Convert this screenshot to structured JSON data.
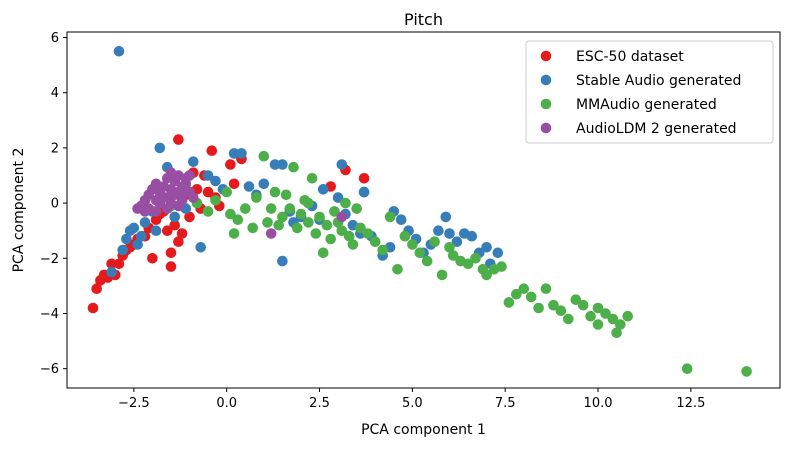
{
  "chart_data": {
    "type": "scatter",
    "title": "Pitch",
    "xlabel": "PCA component 1",
    "ylabel": "PCA component 2",
    "xlim": [
      -4.3,
      14.9
    ],
    "ylim": [
      -6.7,
      6.2
    ],
    "xticks": [
      -2.5,
      0.0,
      2.5,
      5.0,
      7.5,
      10.0,
      12.5
    ],
    "xtick_labels": [
      "−2.5",
      "0.0",
      "2.5",
      "5.0",
      "7.5",
      "10.0",
      "12.5"
    ],
    "yticks": [
      -6,
      -4,
      -2,
      0,
      2,
      4,
      6
    ],
    "ytick_labels": [
      "−6",
      "−4",
      "−2",
      "0",
      "2",
      "4",
      "6"
    ],
    "grid": false,
    "legend_position": "top-right",
    "series": [
      {
        "name": "ESC-50 dataset",
        "color": "#e41a1c",
        "points": [
          [
            -3.6,
            -3.8
          ],
          [
            -3.5,
            -3.1
          ],
          [
            -3.4,
            -2.8
          ],
          [
            -3.3,
            -2.6
          ],
          [
            -3.2,
            -2.7
          ],
          [
            -3.0,
            -2.6
          ],
          [
            -2.9,
            -2.2
          ],
          [
            -2.8,
            -1.9
          ],
          [
            -2.7,
            -1.7
          ],
          [
            -2.5,
            -1.5
          ],
          [
            -2.4,
            -1.3
          ],
          [
            -2.2,
            -1.2
          ],
          [
            -2.1,
            -0.9
          ],
          [
            -2.0,
            -2.0
          ],
          [
            -1.9,
            -0.6
          ],
          [
            -1.8,
            -0.4
          ],
          [
            -1.7,
            -0.3
          ],
          [
            -1.6,
            -1.0
          ],
          [
            -1.5,
            -1.8
          ],
          [
            -1.5,
            -2.3
          ],
          [
            -1.4,
            -0.8
          ],
          [
            -1.3,
            -1.4
          ],
          [
            -1.2,
            -1.1
          ],
          [
            -1.3,
            2.3
          ],
          [
            -1.1,
            0.3
          ],
          [
            -0.9,
            1.1
          ],
          [
            -0.8,
            0.5
          ],
          [
            -0.7,
            -0.2
          ],
          [
            -0.6,
            1.0
          ],
          [
            -0.5,
            0.4
          ],
          [
            -0.4,
            1.9
          ],
          [
            -0.3,
            0.2
          ],
          [
            -0.2,
            -0.1
          ],
          [
            0.1,
            1.4
          ],
          [
            0.2,
            0.7
          ],
          [
            0.4,
            1.6
          ],
          [
            2.8,
            0.6
          ],
          [
            3.2,
            1.2
          ],
          [
            3.7,
            0.9
          ],
          [
            -2.6,
            -1.6
          ],
          [
            -3.1,
            -2.2
          ],
          [
            -1.0,
            -0.5
          ]
        ]
      },
      {
        "name": "Stable Audio generated",
        "color": "#377eb8",
        "points": [
          [
            -2.9,
            5.5
          ],
          [
            -3.1,
            -2.5
          ],
          [
            -2.8,
            -1.7
          ],
          [
            -2.7,
            -1.3
          ],
          [
            -2.6,
            -1.0
          ],
          [
            -2.5,
            -0.9
          ],
          [
            -2.3,
            -1.2
          ],
          [
            -2.2,
            -0.7
          ],
          [
            -2.0,
            -0.3
          ],
          [
            -1.8,
            2.0
          ],
          [
            -1.6,
            1.3
          ],
          [
            -1.4,
            -0.5
          ],
          [
            -1.2,
            0.4
          ],
          [
            -1.1,
            -0.2
          ],
          [
            -0.9,
            1.5
          ],
          [
            -0.7,
            -1.6
          ],
          [
            -0.5,
            1.0
          ],
          [
            -0.3,
            0.8
          ],
          [
            -0.1,
            0.5
          ],
          [
            0.2,
            1.8
          ],
          [
            0.4,
            1.8
          ],
          [
            0.6,
            0.6
          ],
          [
            0.8,
            0.3
          ],
          [
            1.0,
            0.7
          ],
          [
            1.3,
            1.4
          ],
          [
            1.5,
            1.4
          ],
          [
            1.7,
            -0.3
          ],
          [
            1.8,
            -0.7
          ],
          [
            1.5,
            -2.1
          ],
          [
            2.0,
            -0.5
          ],
          [
            2.3,
            -0.1
          ],
          [
            2.5,
            -0.6
          ],
          [
            2.6,
            0.5
          ],
          [
            3.0,
            0.2
          ],
          [
            3.1,
            1.4
          ],
          [
            3.2,
            -0.4
          ],
          [
            3.4,
            -0.8
          ],
          [
            3.6,
            -1.1
          ],
          [
            3.7,
            0.4
          ],
          [
            3.9,
            -1.2
          ],
          [
            4.2,
            -1.9
          ],
          [
            4.4,
            -1.6
          ],
          [
            4.5,
            -0.3
          ],
          [
            4.7,
            -0.6
          ],
          [
            4.9,
            -1.0
          ],
          [
            5.1,
            -1.3
          ],
          [
            5.3,
            -1.8
          ],
          [
            5.5,
            -1.5
          ],
          [
            5.7,
            -1.0
          ],
          [
            5.9,
            -0.5
          ],
          [
            6.0,
            -1.1
          ],
          [
            6.2,
            -1.4
          ],
          [
            6.4,
            -1.1
          ],
          [
            6.6,
            -1.2
          ],
          [
            6.8,
            -1.8
          ],
          [
            7.0,
            -1.6
          ],
          [
            7.1,
            -2.2
          ],
          [
            7.3,
            -1.8
          ],
          [
            3.7,
            0.4
          ],
          [
            -2.4,
            -1.5
          ],
          [
            -1.9,
            -1.0
          ]
        ]
      },
      {
        "name": "MMAudio generated",
        "color": "#4daf4a",
        "points": [
          [
            -0.5,
            -0.3
          ],
          [
            -0.3,
            0.1
          ],
          [
            0.0,
            0.4
          ],
          [
            0.1,
            -0.4
          ],
          [
            0.3,
            -0.6
          ],
          [
            0.5,
            -0.2
          ],
          [
            0.7,
            -0.9
          ],
          [
            0.8,
            0.2
          ],
          [
            1.0,
            1.7
          ],
          [
            1.1,
            -0.7
          ],
          [
            1.2,
            -0.2
          ],
          [
            1.3,
            0.4
          ],
          [
            1.4,
            -0.8
          ],
          [
            1.6,
            0.3
          ],
          [
            1.7,
            -0.2
          ],
          [
            1.8,
            1.3
          ],
          [
            1.9,
            -0.9
          ],
          [
            2.0,
            -0.4
          ],
          [
            2.1,
            0.1
          ],
          [
            2.2,
            -0.7
          ],
          [
            2.3,
            0.9
          ],
          [
            2.4,
            -1.1
          ],
          [
            2.5,
            -0.5
          ],
          [
            2.6,
            -1.8
          ],
          [
            2.7,
            -0.8
          ],
          [
            2.8,
            -1.3
          ],
          [
            2.9,
            -0.3
          ],
          [
            3.0,
            -0.7
          ],
          [
            3.1,
            -1.0
          ],
          [
            3.2,
            0.0
          ],
          [
            3.3,
            -1.2
          ],
          [
            3.4,
            -1.5
          ],
          [
            3.6,
            -0.9
          ],
          [
            3.8,
            -1.1
          ],
          [
            4.0,
            -1.4
          ],
          [
            4.2,
            -1.7
          ],
          [
            4.4,
            -0.5
          ],
          [
            4.6,
            -2.4
          ],
          [
            4.8,
            -1.2
          ],
          [
            5.0,
            -1.5
          ],
          [
            5.2,
            -1.8
          ],
          [
            5.4,
            -2.1
          ],
          [
            5.6,
            -1.4
          ],
          [
            5.8,
            -2.6
          ],
          [
            6.0,
            -1.6
          ],
          [
            6.1,
            -1.9
          ],
          [
            6.3,
            -2.1
          ],
          [
            6.5,
            -2.2
          ],
          [
            6.7,
            -2.0
          ],
          [
            6.9,
            -2.4
          ],
          [
            7.0,
            -2.6
          ],
          [
            7.2,
            -2.4
          ],
          [
            7.4,
            -2.3
          ],
          [
            7.6,
            -3.6
          ],
          [
            7.8,
            -3.3
          ],
          [
            8.0,
            -3.1
          ],
          [
            8.2,
            -3.4
          ],
          [
            8.4,
            -3.8
          ],
          [
            8.6,
            -3.1
          ],
          [
            8.8,
            -3.7
          ],
          [
            9.0,
            -3.9
          ],
          [
            9.2,
            -4.2
          ],
          [
            9.4,
            -3.5
          ],
          [
            9.6,
            -3.7
          ],
          [
            9.8,
            -4.1
          ],
          [
            10.0,
            -3.8
          ],
          [
            10.2,
            -4.0
          ],
          [
            10.4,
            -4.2
          ],
          [
            10.5,
            -4.7
          ],
          [
            10.6,
            -4.4
          ],
          [
            10.8,
            -4.1
          ],
          [
            10.0,
            -4.4
          ],
          [
            12.4,
            -6.0
          ],
          [
            14.0,
            -6.1
          ],
          [
            -1.5,
            -0.1
          ],
          [
            -0.8,
            0.0
          ],
          [
            0.2,
            -1.1
          ],
          [
            1.5,
            -0.5
          ],
          [
            2.2,
            0.0
          ],
          [
            3.5,
            -0.2
          ]
        ]
      },
      {
        "name": "AudioLDM 2 generated",
        "color": "#984ea3",
        "points": [
          [
            -2.4,
            -0.2
          ],
          [
            -2.3,
            -0.1
          ],
          [
            -2.2,
            0.1
          ],
          [
            -2.1,
            0.3
          ],
          [
            -2.0,
            0.5
          ],
          [
            -1.9,
            0.7
          ],
          [
            -1.8,
            0.4
          ],
          [
            -1.7,
            0.6
          ],
          [
            -1.6,
            0.9
          ],
          [
            -1.5,
            1.1
          ],
          [
            -1.4,
            0.8
          ],
          [
            -1.3,
            1.0
          ],
          [
            -1.2,
            0.6
          ],
          [
            -1.1,
            0.9
          ],
          [
            -1.0,
            0.4
          ],
          [
            -0.9,
            0.2
          ],
          [
            -1.8,
            0.0
          ],
          [
            -1.6,
            0.2
          ],
          [
            -1.4,
            0.3
          ],
          [
            -1.2,
            0.1
          ],
          [
            -2.1,
            -0.2
          ],
          [
            -1.9,
            0.1
          ],
          [
            -1.7,
            0.2
          ],
          [
            -1.5,
            0.5
          ],
          [
            -1.3,
            0.4
          ],
          [
            -1.1,
            0.7
          ],
          [
            -1.0,
            1.0
          ],
          [
            -1.5,
            0.0
          ],
          [
            -1.3,
            -0.1
          ],
          [
            -1.9,
            -0.3
          ],
          [
            -2.2,
            -0.3
          ],
          [
            -1.6,
            -0.2
          ],
          [
            -1.2,
            0.3
          ],
          [
            1.2,
            -1.1
          ],
          [
            3.1,
            -0.5
          ]
        ]
      }
    ]
  }
}
